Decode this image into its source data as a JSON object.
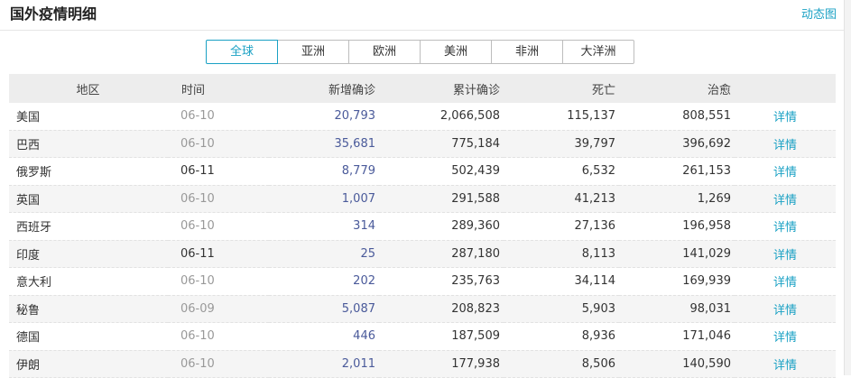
{
  "header": {
    "title": "国外疫情明细",
    "dynamic_link": "动态图"
  },
  "tabs": [
    {
      "label": "全球",
      "active": true
    },
    {
      "label": "亚洲",
      "active": false
    },
    {
      "label": "欧洲",
      "active": false
    },
    {
      "label": "美洲",
      "active": false
    },
    {
      "label": "非洲",
      "active": false
    },
    {
      "label": "大洋洲",
      "active": false
    }
  ],
  "table": {
    "columns": {
      "region": "地区",
      "time": "时间",
      "new": "新增确诊",
      "total": "累计确诊",
      "death": "死亡",
      "cured": "治愈"
    },
    "detail_label": "详情",
    "rows": [
      {
        "region": "美国",
        "time": "06-10",
        "new": "20,793",
        "total": "2,066,508",
        "death": "115,137",
        "cured": "808,551",
        "today": false
      },
      {
        "region": "巴西",
        "time": "06-10",
        "new": "35,681",
        "total": "775,184",
        "death": "39,797",
        "cured": "396,692",
        "today": false
      },
      {
        "region": "俄罗斯",
        "time": "06-11",
        "new": "8,779",
        "total": "502,439",
        "death": "6,532",
        "cured": "261,153",
        "today": true
      },
      {
        "region": "英国",
        "time": "06-10",
        "new": "1,007",
        "total": "291,588",
        "death": "41,213",
        "cured": "1,269",
        "today": false
      },
      {
        "region": "西班牙",
        "time": "06-10",
        "new": "314",
        "total": "289,360",
        "death": "27,136",
        "cured": "196,958",
        "today": false
      },
      {
        "region": "印度",
        "time": "06-11",
        "new": "25",
        "total": "287,180",
        "death": "8,113",
        "cured": "141,029",
        "today": true
      },
      {
        "region": "意大利",
        "time": "06-10",
        "new": "202",
        "total": "235,763",
        "death": "34,114",
        "cured": "169,939",
        "today": false
      },
      {
        "region": "秘鲁",
        "time": "06-09",
        "new": "5,087",
        "total": "208,823",
        "death": "5,903",
        "cured": "98,031",
        "today": false
      },
      {
        "region": "德国",
        "time": "06-10",
        "new": "446",
        "total": "187,509",
        "death": "8,936",
        "cured": "171,046",
        "today": false
      },
      {
        "region": "伊朗",
        "time": "06-10",
        "new": "2,011",
        "total": "177,938",
        "death": "8,506",
        "cured": "140,590",
        "today": false
      }
    ]
  },
  "colors": {
    "accent": "#1aa1c4",
    "new_cases": "#4a5a9a",
    "header_bg": "#ededed",
    "stripe_bg": "#f5f5f5"
  }
}
